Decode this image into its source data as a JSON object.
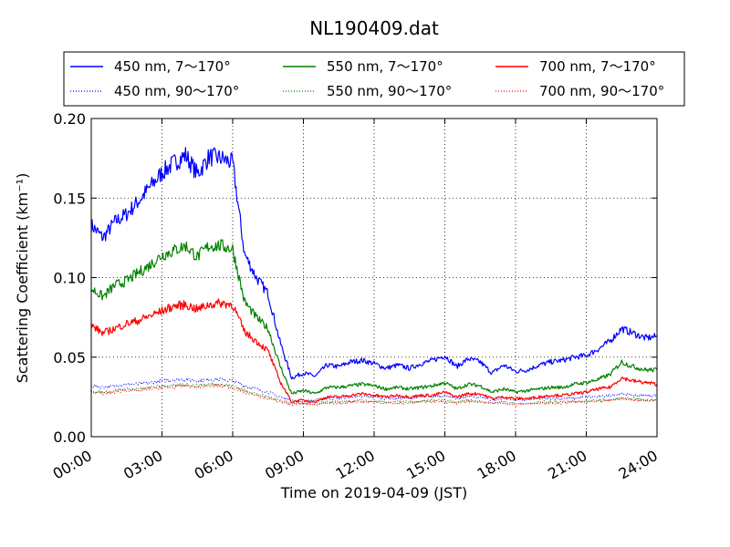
{
  "chart_data": {
    "type": "line",
    "title": "NL190409.dat",
    "xlabel": "Time on 2019-04-09 (JST)",
    "ylabel": "Scattering Coefficient (km⁻¹)",
    "x_unit": "hours",
    "xlim": [
      0,
      24
    ],
    "ylim": [
      0,
      0.2
    ],
    "grid": true,
    "legend_position": "top",
    "x_tick_labels": [
      "00:00",
      "03:00",
      "06:00",
      "09:00",
      "12:00",
      "15:00",
      "18:00",
      "21:00",
      "24:00"
    ],
    "y_tick_labels": [
      "0.00",
      "0.05",
      "0.10",
      "0.15",
      "0.20"
    ],
    "x": [
      0,
      0.5,
      1,
      1.5,
      2,
      2.5,
      3,
      3.5,
      4,
      4.5,
      5,
      5.5,
      6,
      6.5,
      7,
      7.5,
      8,
      8.5,
      9,
      9.5,
      10,
      10.5,
      11,
      11.5,
      12,
      12.5,
      13,
      13.5,
      14,
      14.5,
      15,
      15.5,
      16,
      16.5,
      17,
      17.5,
      18,
      18.5,
      19,
      19.5,
      20,
      20.5,
      21,
      21.5,
      22,
      22.5,
      23,
      23.5,
      24
    ],
    "series": [
      {
        "name": "450 nm, 7～170°",
        "color": "#0000ff",
        "style": "solid",
        "values": [
          0.133,
          0.125,
          0.135,
          0.14,
          0.148,
          0.157,
          0.166,
          0.172,
          0.177,
          0.165,
          0.176,
          0.175,
          0.172,
          0.115,
          0.1,
          0.09,
          0.06,
          0.037,
          0.04,
          0.038,
          0.045,
          0.044,
          0.047,
          0.048,
          0.046,
          0.043,
          0.045,
          0.043,
          0.046,
          0.048,
          0.051,
          0.044,
          0.049,
          0.047,
          0.04,
          0.045,
          0.041,
          0.042,
          0.045,
          0.047,
          0.048,
          0.05,
          0.051,
          0.055,
          0.06,
          0.068,
          0.065,
          0.062,
          0.063
        ]
      },
      {
        "name": "450 nm, 90～170°",
        "color": "#0000ff",
        "style": "dotted",
        "values": [
          0.032,
          0.031,
          0.032,
          0.033,
          0.033,
          0.034,
          0.035,
          0.036,
          0.036,
          0.035,
          0.036,
          0.036,
          0.035,
          0.032,
          0.03,
          0.028,
          0.025,
          0.023,
          0.022,
          0.023,
          0.024,
          0.024,
          0.025,
          0.025,
          0.025,
          0.024,
          0.024,
          0.024,
          0.025,
          0.025,
          0.026,
          0.024,
          0.025,
          0.025,
          0.023,
          0.024,
          0.023,
          0.023,
          0.024,
          0.024,
          0.024,
          0.024,
          0.025,
          0.025,
          0.026,
          0.027,
          0.026,
          0.026,
          0.026
        ]
      },
      {
        "name": "550 nm, 7～170°",
        "color": "#008000",
        "style": "solid",
        "values": [
          0.093,
          0.088,
          0.095,
          0.098,
          0.103,
          0.108,
          0.114,
          0.117,
          0.12,
          0.113,
          0.12,
          0.12,
          0.118,
          0.085,
          0.075,
          0.068,
          0.045,
          0.027,
          0.029,
          0.027,
          0.031,
          0.031,
          0.032,
          0.033,
          0.032,
          0.03,
          0.031,
          0.03,
          0.031,
          0.032,
          0.034,
          0.03,
          0.033,
          0.032,
          0.028,
          0.03,
          0.028,
          0.029,
          0.03,
          0.031,
          0.031,
          0.033,
          0.034,
          0.036,
          0.039,
          0.047,
          0.044,
          0.042,
          0.042
        ]
      },
      {
        "name": "550 nm, 90～170°",
        "color": "#008000",
        "style": "dotted",
        "values": [
          0.029,
          0.028,
          0.029,
          0.03,
          0.03,
          0.031,
          0.032,
          0.032,
          0.033,
          0.032,
          0.033,
          0.033,
          0.032,
          0.029,
          0.027,
          0.025,
          0.023,
          0.021,
          0.021,
          0.021,
          0.022,
          0.022,
          0.022,
          0.023,
          0.022,
          0.022,
          0.022,
          0.022,
          0.022,
          0.023,
          0.023,
          0.022,
          0.023,
          0.022,
          0.021,
          0.022,
          0.021,
          0.021,
          0.022,
          0.022,
          0.022,
          0.022,
          0.022,
          0.023,
          0.023,
          0.024,
          0.024,
          0.023,
          0.023
        ]
      },
      {
        "name": "700 nm, 7～170°",
        "color": "#ff0000",
        "style": "solid",
        "values": [
          0.07,
          0.065,
          0.068,
          0.071,
          0.073,
          0.076,
          0.079,
          0.082,
          0.083,
          0.08,
          0.083,
          0.084,
          0.083,
          0.066,
          0.06,
          0.054,
          0.035,
          0.022,
          0.023,
          0.022,
          0.025,
          0.025,
          0.026,
          0.027,
          0.026,
          0.025,
          0.026,
          0.025,
          0.026,
          0.026,
          0.028,
          0.025,
          0.027,
          0.027,
          0.024,
          0.025,
          0.024,
          0.024,
          0.025,
          0.026,
          0.026,
          0.027,
          0.028,
          0.03,
          0.031,
          0.037,
          0.035,
          0.034,
          0.033
        ]
      },
      {
        "name": "700 nm, 90～170°",
        "color": "#ff0000",
        "style": "dotted",
        "values": [
          0.028,
          0.027,
          0.028,
          0.029,
          0.029,
          0.03,
          0.031,
          0.031,
          0.032,
          0.031,
          0.032,
          0.032,
          0.031,
          0.028,
          0.026,
          0.024,
          0.022,
          0.02,
          0.021,
          0.02,
          0.021,
          0.021,
          0.022,
          0.022,
          0.022,
          0.021,
          0.021,
          0.021,
          0.022,
          0.022,
          0.022,
          0.021,
          0.022,
          0.022,
          0.021,
          0.021,
          0.02,
          0.021,
          0.021,
          0.021,
          0.021,
          0.022,
          0.022,
          0.022,
          0.023,
          0.024,
          0.023,
          0.023,
          0.023
        ]
      }
    ]
  }
}
